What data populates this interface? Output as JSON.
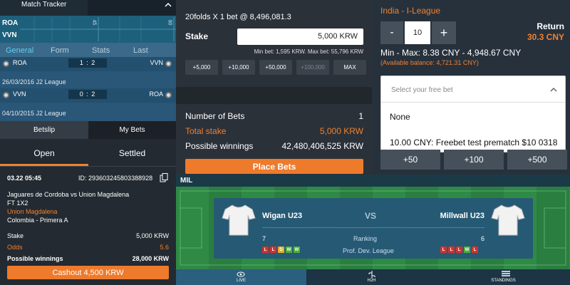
{
  "tracker": {
    "title": "Match Tracker",
    "teams": [
      "ROA",
      "VVN"
    ],
    "timeline_marks": [
      "45",
      "90"
    ],
    "tabs": [
      "General",
      "Form",
      "Stats",
      "Last"
    ],
    "matches": [
      {
        "home": "ROA",
        "score": "1 : 2",
        "away": "VVN",
        "info": "26/03/2016 J2 League"
      },
      {
        "home": "VVN",
        "score": "0 : 2",
        "away": "ROA",
        "info": "04/10/2015 J2 League"
      }
    ]
  },
  "mybets": {
    "tabs": [
      "Betslip",
      "My Bets"
    ],
    "subtabs": [
      "Open",
      "Settled"
    ],
    "date": "03.22  05:45",
    "id": "ID: 293603245803388928",
    "event": "Jaguares de Cordoba vs Union Magdalena",
    "market": "FT 1X2",
    "selection": "Union Magdalena",
    "league": "Colombia - Primera A",
    "rows": [
      {
        "label": "Stake",
        "value": "5,000 KRW"
      },
      {
        "label": "Odds",
        "value": "5.6"
      },
      {
        "label": "Possible winnings",
        "value": "28,000 KRW"
      }
    ],
    "cashout": "Cashout 4,500 KRW"
  },
  "betslip": {
    "header": "20folds X 1 bet @ 8,496,081.3",
    "stake_label": "Stake",
    "stake_value": "5,000 KRW",
    "limits": "Min bet: 1,595 KRW. Max bet: 55,796 KRW",
    "quick": [
      "+5,000",
      "+10,000",
      "+50,000",
      "+100,000",
      "MAX"
    ],
    "summary": [
      {
        "label": "Number of Bets",
        "value": "1"
      },
      {
        "label": "Total stake",
        "value": "5,000 KRW"
      },
      {
        "label": "Possible winnings",
        "value": "42,480,406,525 KRW"
      }
    ],
    "place": "Place Bets"
  },
  "freebet": {
    "league": "India - I-League",
    "minus": "-",
    "amount": "10",
    "plus": "+",
    "return_label": "Return",
    "return_value": "30.3 CNY",
    "minmax": "Min - Max: 8.38 CNY - 4,948.67 CNY",
    "balance": "(Available balance: 4,721.31 CNY)",
    "select": "Select your free bet",
    "options": [
      "None",
      "10.00 CNY: Freebet test prematch $10 0318"
    ],
    "quick": [
      "+50",
      "+100",
      "+500"
    ]
  },
  "match": {
    "header": "MIL",
    "home": "Wigan U23",
    "vs": "VS",
    "away": "Millwall U23",
    "home_rank": "7",
    "rank_label": "Ranking",
    "away_rank": "6",
    "league": "Prof. Dev. League",
    "home_form": [
      {
        "r": "L",
        "color": "#d6302a"
      },
      {
        "r": "L",
        "color": "#d6302a"
      },
      {
        "r": "D",
        "color": "#e2b021"
      },
      {
        "r": "W",
        "color": "#4cae3a"
      },
      {
        "r": "W",
        "color": "#4cae3a"
      }
    ],
    "away_form": [
      {
        "r": "L",
        "color": "#d6302a"
      },
      {
        "r": "L",
        "color": "#d6302a"
      },
      {
        "r": "L",
        "color": "#d6302a"
      },
      {
        "r": "W",
        "color": "#4cae3a"
      },
      {
        "r": "L",
        "color": "#d6302a"
      }
    ],
    "nav": [
      "LIVE",
      "H2H",
      "STANDINGS"
    ]
  }
}
